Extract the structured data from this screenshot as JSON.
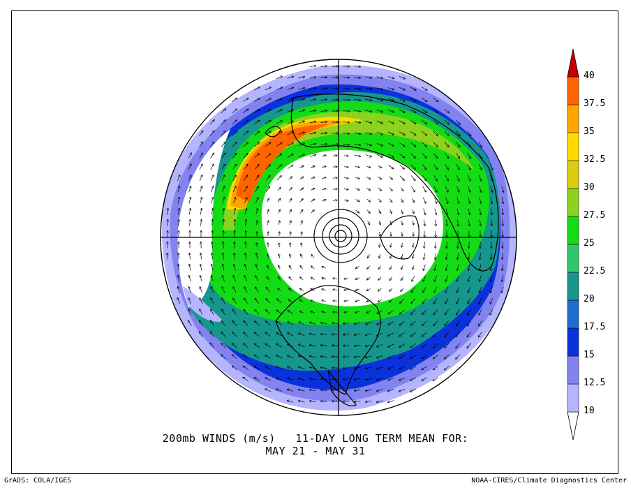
{
  "title": {
    "line1": "200mb WINDS (m/s)   11-DAY LONG TERM MEAN FOR:",
    "line2": "MAY 21 - MAY 31"
  },
  "footer": {
    "left": "GrADS: COLA/IGES",
    "right": "NOAA-CIRES/Climate Diagnostics Center"
  },
  "colorbar": {
    "units": "m/s",
    "levels": [
      "10",
      "12.5",
      "15",
      "17.5",
      "20",
      "22.5",
      "25",
      "27.5",
      "30",
      "32.5",
      "35",
      "37.5",
      "40"
    ],
    "colors": [
      "#ffffff",
      "#b4b4ff",
      "#8282f0",
      "#0a32dc",
      "#1e6ed2",
      "#16968c",
      "#2ec86a",
      "#14dc14",
      "#8cd21e",
      "#dccd14",
      "#ffdc00",
      "#ffa500",
      "#ff6400",
      "#c80000"
    ]
  },
  "map": {
    "projection": "north polar stereographic",
    "field": "200mb wind speed with wind vectors",
    "jet_core_region": "North Pacific (near Japan)",
    "jet_core_max": "37.5"
  }
}
